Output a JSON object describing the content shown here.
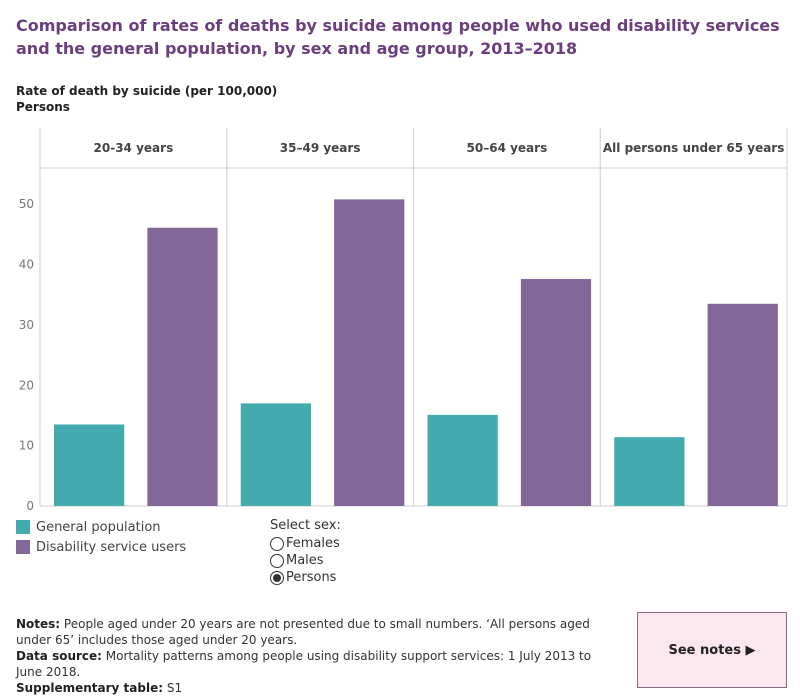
{
  "title": "Comparison of rates of deaths by suicide among people who used disability services and the general population, by sex and age group,  2013–2018",
  "ylabel": "Rate of death by suicide (per 100,000)",
  "ysubtitle": "Persons",
  "legend": {
    "general": "General population",
    "disability": "Disability service users"
  },
  "colors": {
    "general": "#43aaad",
    "disability": "#836799",
    "title": "#6b3f7f"
  },
  "sex_select": {
    "title": "Select sex:",
    "options": [
      "Females",
      "Males",
      "Persons"
    ],
    "selected": "Persons"
  },
  "notes": {
    "notes_label": "Notes:",
    "notes_text": " People aged under 20 years are not presented due to small numbers. ‘All persons aged under 65’ includes those aged under 20 years.",
    "source_label": "Data source:",
    "source_text": " Mortality patterns among people using disability support services: 1 July 2013 to June 2018.",
    "table_label": "Supplementary table:",
    "table_text": " S1"
  },
  "see_notes": "See notes ▶",
  "chart_data": {
    "type": "bar",
    "categories": [
      "20-34 years",
      "35–49 years",
      "50–64 years",
      "All persons under 65 years"
    ],
    "series": [
      {
        "name": "General population",
        "values": [
          13.5,
          17.0,
          15.1,
          11.4
        ]
      },
      {
        "name": "Disability service users",
        "values": [
          46.1,
          50.8,
          37.6,
          33.5
        ]
      }
    ],
    "ylim": [
      0,
      55
    ],
    "yticks": [
      0,
      10,
      20,
      30,
      40,
      50
    ],
    "grid": false,
    "legend_position": "bottom-left"
  }
}
